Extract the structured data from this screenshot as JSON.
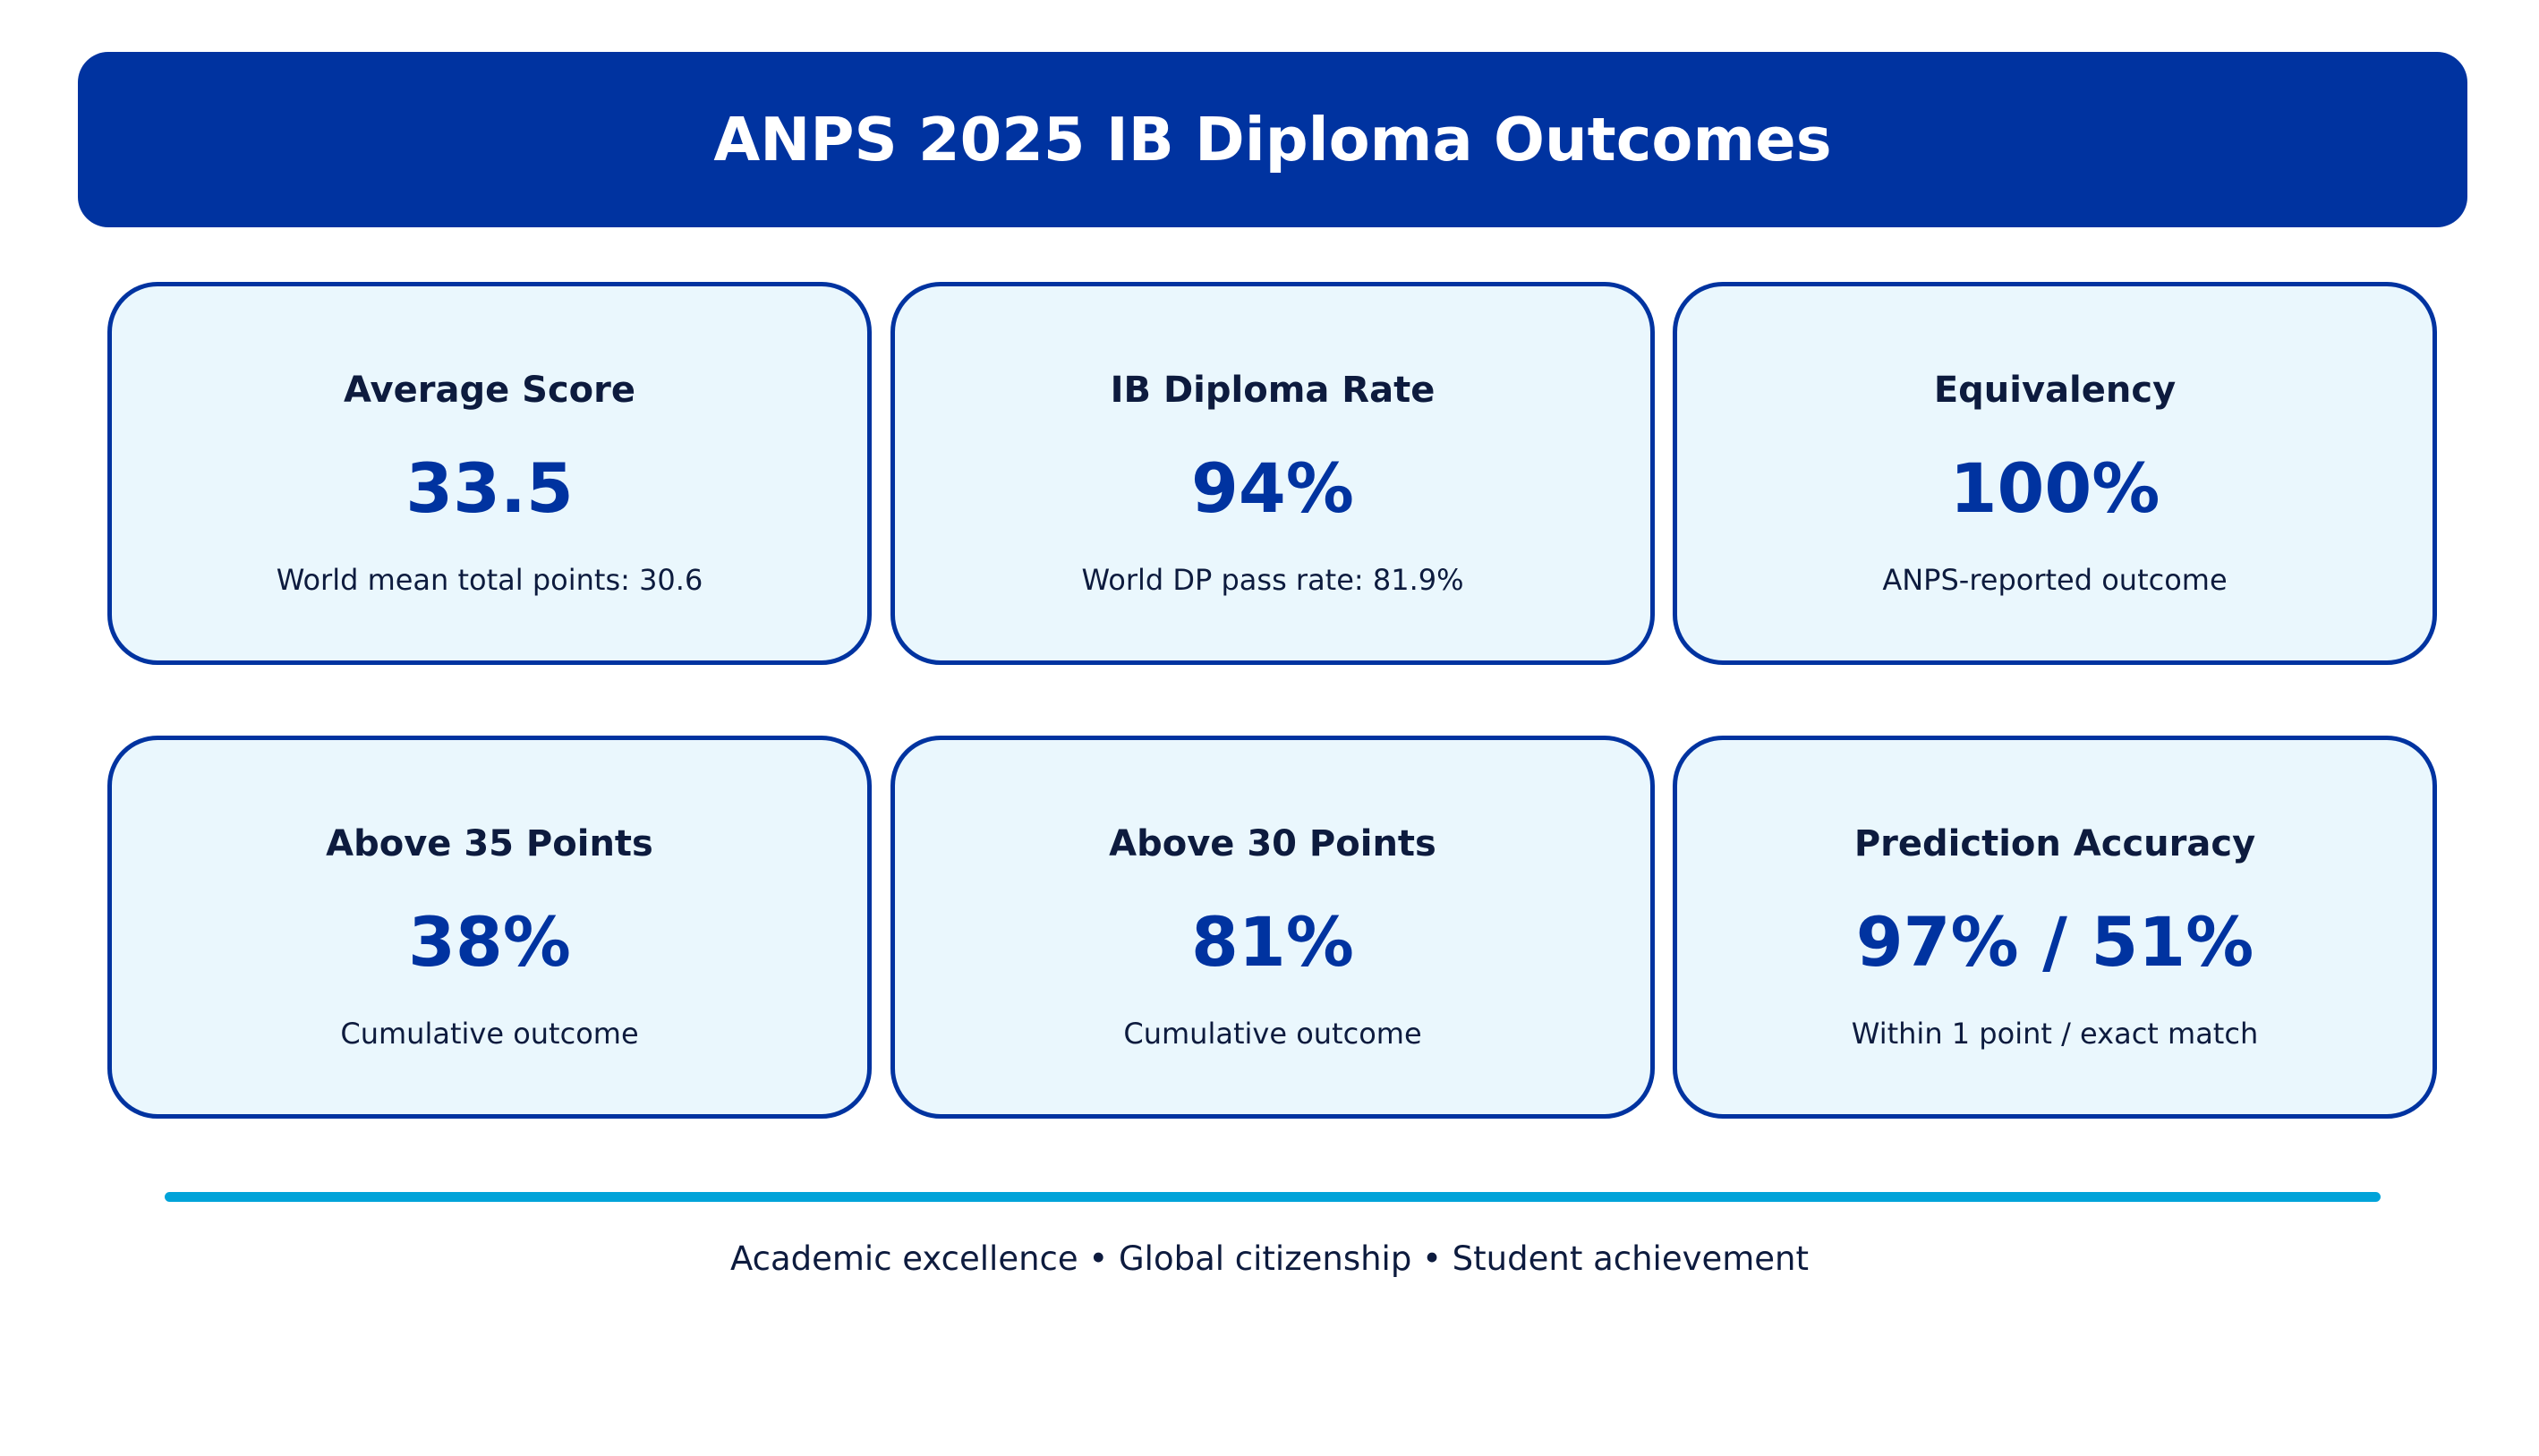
{
  "header": {
    "title": "ANPS 2025 IB Diploma Outcomes"
  },
  "cards": [
    {
      "label": "Average Score",
      "value": "33.5",
      "note": "World mean total points: 30.6"
    },
    {
      "label": "IB Diploma Rate",
      "value": "94%",
      "note": "World DP pass rate: 81.9%"
    },
    {
      "label": "Equivalency",
      "value": "100%",
      "note": "ANPS-reported outcome"
    },
    {
      "label": "Above 35 Points",
      "value": "38%",
      "note": "Cumulative outcome"
    },
    {
      "label": "Above 30 Points",
      "value": "81%",
      "note": "Cumulative outcome"
    },
    {
      "label": "Prediction Accuracy",
      "value": "97% / 51%",
      "note": "Within 1 point / exact match"
    }
  ],
  "footer": {
    "tagline": "Academic excellence • Global citizenship • Student achievement"
  },
  "colors": {
    "header_bg": "#0033a0",
    "card_bg": "#eaf7fd",
    "card_border": "#0033a0",
    "value_text": "#0033a0",
    "body_text": "#0d1b3e",
    "divider": "#00a3d9"
  }
}
